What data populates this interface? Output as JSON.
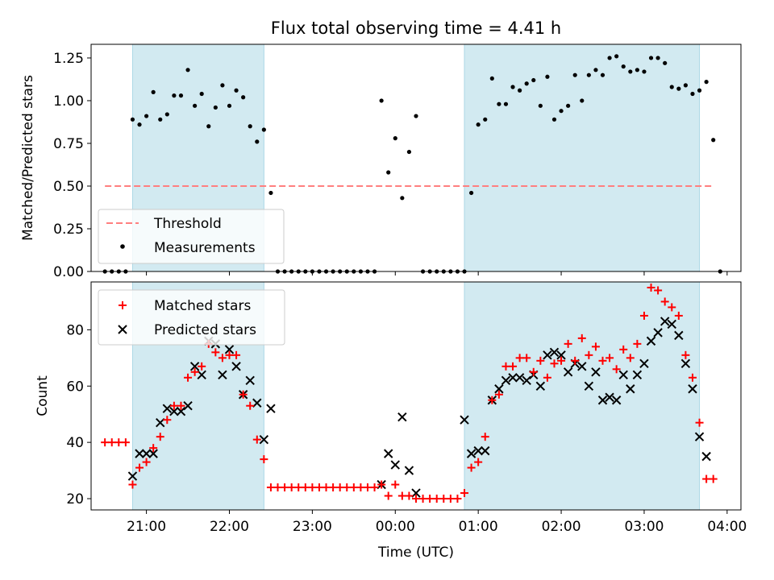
{
  "chart_data": [
    {
      "type": "scatter",
      "title": "Flux total observing time = 4.41 h",
      "xlabel": "",
      "ylabel": "Matched/Predicted stars",
      "ylim": [
        0,
        1.33
      ],
      "yticks": [
        0.0,
        0.25,
        0.5,
        0.75,
        1.0,
        1.25
      ],
      "ytick_labels": [
        "0.00",
        "0.25",
        "0.50",
        "0.75",
        "1.00",
        "1.25"
      ],
      "x_axis": "time (UTC)",
      "xlim": [
        "20:20",
        "04:10"
      ],
      "grid": false,
      "legend_position": "lower-left",
      "shaded_intervals": [
        [
          "20:50",
          "22:25"
        ],
        [
          "00:50",
          "03:40"
        ]
      ],
      "threshold": {
        "name": "Threshold",
        "y": 0.5,
        "x_range": [
          "20:30",
          "03:50"
        ],
        "color": "#ff7f7f",
        "style": "dashed"
      },
      "series": [
        {
          "name": "Measurements",
          "color": "#000000",
          "marker": "dot",
          "points": [
            [
              "20:30",
              0.0
            ],
            [
              "20:35",
              0.0
            ],
            [
              "20:40",
              0.0
            ],
            [
              "20:45",
              0.0
            ],
            [
              "20:50",
              0.89
            ],
            [
              "20:55",
              0.86
            ],
            [
              "21:00",
              0.91
            ],
            [
              "21:05",
              1.05
            ],
            [
              "21:10",
              0.89
            ],
            [
              "21:15",
              0.92
            ],
            [
              "21:20",
              1.03
            ],
            [
              "21:25",
              1.03
            ],
            [
              "21:30",
              1.18
            ],
            [
              "21:35",
              0.97
            ],
            [
              "21:40",
              1.04
            ],
            [
              "21:45",
              0.85
            ],
            [
              "21:50",
              0.96
            ],
            [
              "21:55",
              1.09
            ],
            [
              "22:00",
              0.97
            ],
            [
              "22:05",
              1.06
            ],
            [
              "22:10",
              1.02
            ],
            [
              "22:15",
              0.85
            ],
            [
              "22:20",
              0.76
            ],
            [
              "22:25",
              0.83
            ],
            [
              "22:30",
              0.46
            ],
            [
              "22:35",
              0.0
            ],
            [
              "22:40",
              0.0
            ],
            [
              "22:45",
              0.0
            ],
            [
              "22:50",
              0.0
            ],
            [
              "22:55",
              0.0
            ],
            [
              "23:00",
              0.0
            ],
            [
              "23:05",
              0.0
            ],
            [
              "23:10",
              0.0
            ],
            [
              "23:15",
              0.0
            ],
            [
              "23:20",
              0.0
            ],
            [
              "23:25",
              0.0
            ],
            [
              "23:30",
              0.0
            ],
            [
              "23:35",
              0.0
            ],
            [
              "23:40",
              0.0
            ],
            [
              "23:45",
              0.0
            ],
            [
              "23:50",
              1.0
            ],
            [
              "23:55",
              0.58
            ],
            [
              "00:00",
              0.78
            ],
            [
              "00:05",
              0.43
            ],
            [
              "00:10",
              0.7
            ],
            [
              "00:15",
              0.91
            ],
            [
              "00:20",
              0.0
            ],
            [
              "00:25",
              0.0
            ],
            [
              "00:30",
              0.0
            ],
            [
              "00:35",
              0.0
            ],
            [
              "00:40",
              0.0
            ],
            [
              "00:45",
              0.0
            ],
            [
              "00:50",
              0.0
            ],
            [
              "00:55",
              0.46
            ],
            [
              "01:00",
              0.86
            ],
            [
              "01:05",
              0.89
            ],
            [
              "01:10",
              1.13
            ],
            [
              "01:15",
              0.98
            ],
            [
              "01:20",
              0.98
            ],
            [
              "01:25",
              1.08
            ],
            [
              "01:30",
              1.06
            ],
            [
              "01:35",
              1.1
            ],
            [
              "01:40",
              1.12
            ],
            [
              "01:45",
              0.97
            ],
            [
              "01:50",
              1.14
            ],
            [
              "01:55",
              0.89
            ],
            [
              "02:00",
              0.94
            ],
            [
              "02:05",
              0.97
            ],
            [
              "02:10",
              1.15
            ],
            [
              "02:15",
              1.0
            ],
            [
              "02:20",
              1.15
            ],
            [
              "02:25",
              1.18
            ],
            [
              "02:30",
              1.15
            ],
            [
              "02:35",
              1.25
            ],
            [
              "02:40",
              1.26
            ],
            [
              "02:45",
              1.2
            ],
            [
              "02:50",
              1.17
            ],
            [
              "02:55",
              1.18
            ],
            [
              "03:00",
              1.17
            ],
            [
              "03:05",
              1.25
            ],
            [
              "03:10",
              1.25
            ],
            [
              "03:15",
              1.22
            ],
            [
              "03:20",
              1.08
            ],
            [
              "03:25",
              1.07
            ],
            [
              "03:30",
              1.09
            ],
            [
              "03:35",
              1.04
            ],
            [
              "03:40",
              1.06
            ],
            [
              "03:45",
              1.11
            ],
            [
              "03:50",
              0.77
            ],
            [
              "03:55",
              0.0
            ]
          ]
        }
      ]
    },
    {
      "type": "scatter",
      "title": "",
      "xlabel": "Time (UTC)",
      "ylabel": "Count",
      "ylim": [
        16,
        97
      ],
      "yticks": [
        20,
        40,
        60,
        80
      ],
      "ytick_labels": [
        "20",
        "40",
        "60",
        "80"
      ],
      "x_axis": "time (UTC)",
      "xlim": [
        "20:20",
        "04:10"
      ],
      "xticks": [
        "21:00",
        "22:00",
        "23:00",
        "00:00",
        "01:00",
        "02:00",
        "03:00",
        "04:00"
      ],
      "xtick_labels": [
        "21:00",
        "22:00",
        "23:00",
        "00:00",
        "01:00",
        "02:00",
        "03:00",
        "04:00"
      ],
      "grid": false,
      "legend_position": "upper-left",
      "shaded_intervals": [
        [
          "20:50",
          "22:25"
        ],
        [
          "00:50",
          "03:40"
        ]
      ],
      "series": [
        {
          "name": "Matched stars",
          "color": "#ff0000",
          "marker": "plus",
          "points": [
            [
              "20:30",
              40
            ],
            [
              "20:35",
              40
            ],
            [
              "20:40",
              40
            ],
            [
              "20:45",
              40
            ],
            [
              "20:50",
              25
            ],
            [
              "20:55",
              31
            ],
            [
              "21:00",
              33
            ],
            [
              "21:05",
              38
            ],
            [
              "21:10",
              42
            ],
            [
              "21:15",
              48
            ],
            [
              "21:20",
              53
            ],
            [
              "21:25",
              53
            ],
            [
              "21:30",
              63
            ],
            [
              "21:35",
              65
            ],
            [
              "21:40",
              67
            ],
            [
              "21:45",
              75
            ],
            [
              "21:50",
              72
            ],
            [
              "21:55",
              70
            ],
            [
              "22:00",
              71
            ],
            [
              "22:05",
              71
            ],
            [
              "22:10",
              57
            ],
            [
              "22:15",
              53
            ],
            [
              "22:20",
              41
            ],
            [
              "22:25",
              34
            ],
            [
              "22:30",
              24
            ],
            [
              "22:35",
              24
            ],
            [
              "22:40",
              24
            ],
            [
              "22:45",
              24
            ],
            [
              "22:50",
              24
            ],
            [
              "22:55",
              24
            ],
            [
              "23:00",
              24
            ],
            [
              "23:05",
              24
            ],
            [
              "23:10",
              24
            ],
            [
              "23:15",
              24
            ],
            [
              "23:20",
              24
            ],
            [
              "23:25",
              24
            ],
            [
              "23:30",
              24
            ],
            [
              "23:35",
              24
            ],
            [
              "23:40",
              24
            ],
            [
              "23:45",
              24
            ],
            [
              "23:50",
              25
            ],
            [
              "23:55",
              21
            ],
            [
              "00:00",
              25
            ],
            [
              "00:05",
              21
            ],
            [
              "00:10",
              21
            ],
            [
              "00:15",
              20
            ],
            [
              "00:20",
              20
            ],
            [
              "00:25",
              20
            ],
            [
              "00:30",
              20
            ],
            [
              "00:35",
              20
            ],
            [
              "00:40",
              20
            ],
            [
              "00:45",
              20
            ],
            [
              "00:50",
              22
            ],
            [
              "00:55",
              31
            ],
            [
              "01:00",
              33
            ],
            [
              "01:05",
              42
            ],
            [
              "01:10",
              55
            ],
            [
              "01:15",
              57
            ],
            [
              "01:20",
              67
            ],
            [
              "01:25",
              67
            ],
            [
              "01:30",
              70
            ],
            [
              "01:35",
              70
            ],
            [
              "01:40",
              65
            ],
            [
              "01:45",
              69
            ],
            [
              "01:50",
              63
            ],
            [
              "01:55",
              68
            ],
            [
              "02:00",
              69
            ],
            [
              "02:05",
              75
            ],
            [
              "02:10",
              69
            ],
            [
              "02:15",
              77
            ],
            [
              "02:20",
              71
            ],
            [
              "02:25",
              74
            ],
            [
              "02:30",
              69
            ],
            [
              "02:35",
              70
            ],
            [
              "02:40",
              66
            ],
            [
              "02:45",
              73
            ],
            [
              "02:50",
              70
            ],
            [
              "02:55",
              75
            ],
            [
              "03:00",
              85
            ],
            [
              "03:05",
              95
            ],
            [
              "03:10",
              94
            ],
            [
              "03:15",
              90
            ],
            [
              "03:20",
              88
            ],
            [
              "03:25",
              85
            ],
            [
              "03:30",
              71
            ],
            [
              "03:35",
              63
            ],
            [
              "03:40",
              47
            ],
            [
              "03:45",
              27
            ],
            [
              "03:50",
              27
            ]
          ]
        },
        {
          "name": "Predicted stars",
          "color": "#000000",
          "marker": "x",
          "points": [
            [
              "20:50",
              28
            ],
            [
              "20:55",
              36
            ],
            [
              "21:00",
              36
            ],
            [
              "21:05",
              36
            ],
            [
              "21:10",
              47
            ],
            [
              "21:15",
              52
            ],
            [
              "21:20",
              51
            ],
            [
              "21:25",
              51
            ],
            [
              "21:30",
              53
            ],
            [
              "21:35",
              67
            ],
            [
              "21:40",
              64
            ],
            [
              "21:45",
              76
            ],
            [
              "21:50",
              75
            ],
            [
              "21:55",
              64
            ],
            [
              "22:00",
              73
            ],
            [
              "22:05",
              67
            ],
            [
              "22:10",
              57
            ],
            [
              "22:15",
              62
            ],
            [
              "22:20",
              54
            ],
            [
              "22:25",
              41
            ],
            [
              "22:30",
              52
            ],
            [
              "23:50",
              25
            ],
            [
              "23:55",
              36
            ],
            [
              "00:00",
              32
            ],
            [
              "00:05",
              49
            ],
            [
              "00:10",
              30
            ],
            [
              "00:15",
              22
            ],
            [
              "00:50",
              48
            ],
            [
              "00:55",
              36
            ],
            [
              "01:00",
              37
            ],
            [
              "01:05",
              37
            ],
            [
              "01:10",
              55
            ],
            [
              "01:15",
              59
            ],
            [
              "01:20",
              62
            ],
            [
              "01:25",
              63
            ],
            [
              "01:30",
              63
            ],
            [
              "01:35",
              62
            ],
            [
              "01:40",
              64
            ],
            [
              "01:45",
              60
            ],
            [
              "01:50",
              71
            ],
            [
              "01:55",
              72
            ],
            [
              "02:00",
              71
            ],
            [
              "02:05",
              65
            ],
            [
              "02:10",
              68
            ],
            [
              "02:15",
              67
            ],
            [
              "02:20",
              60
            ],
            [
              "02:25",
              65
            ],
            [
              "02:30",
              55
            ],
            [
              "02:35",
              56
            ],
            [
              "02:40",
              55
            ],
            [
              "02:45",
              64
            ],
            [
              "02:50",
              59
            ],
            [
              "02:55",
              64
            ],
            [
              "03:00",
              68
            ],
            [
              "03:05",
              76
            ],
            [
              "03:10",
              79
            ],
            [
              "03:15",
              83
            ],
            [
              "03:20",
              82
            ],
            [
              "03:25",
              78
            ],
            [
              "03:30",
              68
            ],
            [
              "03:35",
              59
            ],
            [
              "03:40",
              42
            ],
            [
              "03:45",
              35
            ]
          ]
        }
      ]
    }
  ]
}
